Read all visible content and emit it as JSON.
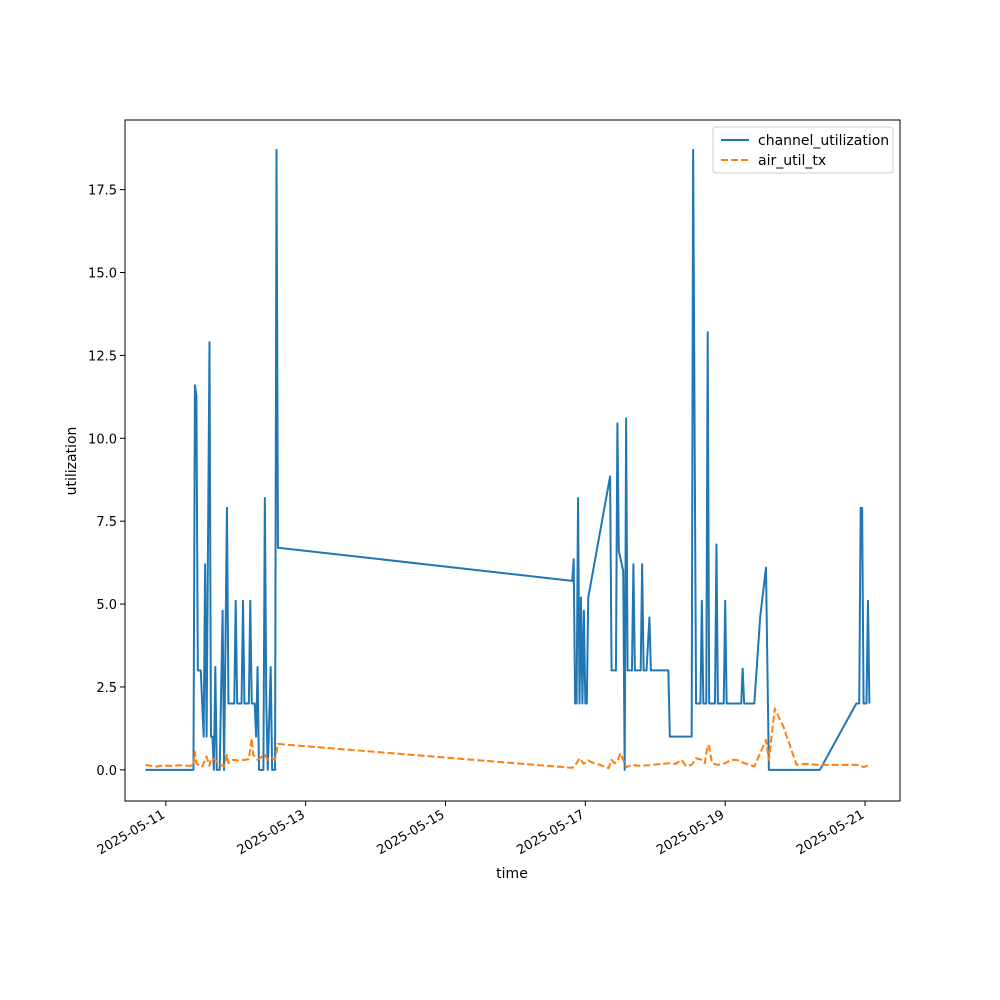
{
  "chart_data": {
    "type": "line",
    "xlabel": "time",
    "ylabel": "utilization",
    "x_axis_type": "date",
    "xlim": [
      "2025-05-10T10:00",
      "2025-05-21T12:00"
    ],
    "ylim": [
      -0.94,
      19.6
    ],
    "x_ticks": [
      {
        "value": "2025-05-11",
        "label": "2025-05-11"
      },
      {
        "value": "2025-05-13",
        "label": "2025-05-13"
      },
      {
        "value": "2025-05-15",
        "label": "2025-05-15"
      },
      {
        "value": "2025-05-17",
        "label": "2025-05-17"
      },
      {
        "value": "2025-05-19",
        "label": "2025-05-19"
      },
      {
        "value": "2025-05-21",
        "label": "2025-05-21"
      }
    ],
    "y_ticks": [
      {
        "value": 0,
        "label": "0.0"
      },
      {
        "value": 2.5,
        "label": "2.5"
      },
      {
        "value": 5,
        "label": "5.0"
      },
      {
        "value": 7.5,
        "label": "7.5"
      },
      {
        "value": 10,
        "label": "10.0"
      },
      {
        "value": 12.5,
        "label": "12.5"
      },
      {
        "value": 15,
        "label": "15.0"
      },
      {
        "value": 17.5,
        "label": "17.5"
      }
    ],
    "legend": {
      "placement": "top-right"
    },
    "grid": false,
    "series": [
      {
        "name": "channel_utilization",
        "color": "#1f77b4",
        "style": "solid",
        "points": [
          [
            "2025-05-10T17:00",
            0
          ],
          [
            "2025-05-11T09:30",
            0
          ],
          [
            "2025-05-11T10:00",
            11.6
          ],
          [
            "2025-05-11T10:30",
            11.3
          ],
          [
            "2025-05-11T11:00",
            3.0
          ],
          [
            "2025-05-11T12:00",
            3.0
          ],
          [
            "2025-05-11T13:00",
            1.0
          ],
          [
            "2025-05-11T13:30",
            6.2
          ],
          [
            "2025-05-11T14:00",
            1.0
          ],
          [
            "2025-05-11T15:00",
            12.9
          ],
          [
            "2025-05-11T15:30",
            1.0
          ],
          [
            "2025-05-11T16:00",
            1.0
          ],
          [
            "2025-05-11T16:30",
            0
          ],
          [
            "2025-05-11T17:00",
            3.1
          ],
          [
            "2025-05-11T17:30",
            0
          ],
          [
            "2025-05-11T18:30",
            0
          ],
          [
            "2025-05-11T19:30",
            4.8
          ],
          [
            "2025-05-11T20:00",
            0
          ],
          [
            "2025-05-11T21:00",
            7.9
          ],
          [
            "2025-05-11T21:30",
            2.0
          ],
          [
            "2025-05-11T23:30",
            2.0
          ],
          [
            "2025-05-12T00:00",
            5.1
          ],
          [
            "2025-05-12T00:30",
            2.0
          ],
          [
            "2025-05-12T02:00",
            2.0
          ],
          [
            "2025-05-12T02:30",
            5.1
          ],
          [
            "2025-05-12T03:00",
            2.0
          ],
          [
            "2025-05-12T04:30",
            2.0
          ],
          [
            "2025-05-12T05:00",
            5.1
          ],
          [
            "2025-05-12T05:30",
            2.0
          ],
          [
            "2025-05-12T06:30",
            2.0
          ],
          [
            "2025-05-12T07:00",
            1.0
          ],
          [
            "2025-05-12T07:30",
            3.1
          ],
          [
            "2025-05-12T08:00",
            0
          ],
          [
            "2025-05-12T09:30",
            0
          ],
          [
            "2025-05-12T10:00",
            8.2
          ],
          [
            "2025-05-12T10:30",
            2.0
          ],
          [
            "2025-05-12T11:00",
            0
          ],
          [
            "2025-05-12T12:00",
            3.1
          ],
          [
            "2025-05-12T12:30",
            0
          ],
          [
            "2025-05-12T13:30",
            0
          ],
          [
            "2025-05-12T14:00",
            18.7
          ],
          [
            "2025-05-12T14:30",
            6.7
          ],
          [
            "2025-05-16T19:30",
            5.7
          ],
          [
            "2025-05-16T20:00",
            6.35
          ],
          [
            "2025-05-16T20:30",
            2.0
          ],
          [
            "2025-05-16T21:00",
            2.0
          ],
          [
            "2025-05-16T21:30",
            8.2
          ],
          [
            "2025-05-16T22:00",
            2.0
          ],
          [
            "2025-05-16T22:30",
            5.2
          ],
          [
            "2025-05-16T23:00",
            2.0
          ],
          [
            "2025-05-16T23:30",
            4.8
          ],
          [
            "2025-05-17T00:00",
            2.0
          ],
          [
            "2025-05-17T00:30",
            2.0
          ],
          [
            "2025-05-17T01:00",
            5.2
          ],
          [
            "2025-05-17T08:30",
            8.85
          ],
          [
            "2025-05-17T09:00",
            3.0
          ],
          [
            "2025-05-17T10:30",
            3.0
          ],
          [
            "2025-05-17T11:00",
            10.45
          ],
          [
            "2025-05-17T11:30",
            6.6
          ],
          [
            "2025-05-17T13:00",
            6.0
          ],
          [
            "2025-05-17T13:30",
            0
          ],
          [
            "2025-05-17T14:00",
            10.6
          ],
          [
            "2025-05-17T14:30",
            3.0
          ],
          [
            "2025-05-17T16:00",
            3.0
          ],
          [
            "2025-05-17T16:30",
            6.2
          ],
          [
            "2025-05-17T17:00",
            3.0
          ],
          [
            "2025-05-17T19:00",
            3.0
          ],
          [
            "2025-05-17T19:30",
            6.2
          ],
          [
            "2025-05-17T20:00",
            3.0
          ],
          [
            "2025-05-17T21:00",
            3.0
          ],
          [
            "2025-05-17T22:00",
            4.6
          ],
          [
            "2025-05-17T22:30",
            3.0
          ],
          [
            "2025-05-18T02:00",
            3.0
          ],
          [
            "2025-05-18T04:30",
            3.0
          ],
          [
            "2025-05-18T05:00",
            1.0
          ],
          [
            "2025-05-18T12:30",
            1.0
          ],
          [
            "2025-05-18T13:00",
            18.7
          ],
          [
            "2025-05-18T14:00",
            2.0
          ],
          [
            "2025-05-18T15:30",
            2.0
          ],
          [
            "2025-05-18T16:00",
            5.1
          ],
          [
            "2025-05-18T16:30",
            2.0
          ],
          [
            "2025-05-18T17:30",
            2.0
          ],
          [
            "2025-05-18T18:00",
            13.2
          ],
          [
            "2025-05-18T18:30",
            2.0
          ],
          [
            "2025-05-18T20:30",
            2.0
          ],
          [
            "2025-05-18T21:00",
            6.8
          ],
          [
            "2025-05-18T21:30",
            2.0
          ],
          [
            "2025-05-18T23:30",
            2.0
          ],
          [
            "2025-05-19T00:00",
            5.1
          ],
          [
            "2025-05-19T00:30",
            2.0
          ],
          [
            "2025-05-19T05:30",
            2.0
          ],
          [
            "2025-05-19T06:00",
            3.05
          ],
          [
            "2025-05-19T06:30",
            2.0
          ],
          [
            "2025-05-19T10:00",
            2.0
          ],
          [
            "2025-05-19T12:00",
            4.6
          ],
          [
            "2025-05-19T14:00",
            6.1
          ],
          [
            "2025-05-19T15:00",
            0
          ],
          [
            "2025-05-20T08:30",
            0
          ],
          [
            "2025-05-20T21:00",
            2.0
          ],
          [
            "2025-05-20T22:00",
            2.0
          ],
          [
            "2025-05-20T22:30",
            7.9
          ],
          [
            "2025-05-20T23:00",
            7.9
          ],
          [
            "2025-05-20T23:30",
            2.0
          ],
          [
            "2025-05-21T00:30",
            2.0
          ],
          [
            "2025-05-21T01:00",
            5.1
          ],
          [
            "2025-05-21T01:30",
            2.0
          ]
        ]
      },
      {
        "name": "air_util_tx",
        "color": "#ff7f0e",
        "style": "dashed",
        "points": [
          [
            "2025-05-10T17:00",
            0.15
          ],
          [
            "2025-05-10T19:00",
            0.12
          ],
          [
            "2025-05-10T21:00",
            0.1
          ],
          [
            "2025-05-10T23:00",
            0.13
          ],
          [
            "2025-05-11T02:00",
            0.12
          ],
          [
            "2025-05-11T05:00",
            0.14
          ],
          [
            "2025-05-11T08:00",
            0.12
          ],
          [
            "2025-05-11T09:30",
            0.14
          ],
          [
            "2025-05-11T10:00",
            0.55
          ],
          [
            "2025-05-11T10:30",
            0.2
          ],
          [
            "2025-05-11T11:30",
            0.12
          ],
          [
            "2025-05-11T12:30",
            0.1
          ],
          [
            "2025-05-11T13:30",
            0.3
          ],
          [
            "2025-05-11T14:00",
            0.4
          ],
          [
            "2025-05-11T15:00",
            0.12
          ],
          [
            "2025-05-11T15:30",
            0.35
          ],
          [
            "2025-05-11T17:00",
            0.3
          ],
          [
            "2025-05-11T18:00",
            0.2
          ],
          [
            "2025-05-11T20:00",
            0.1
          ],
          [
            "2025-05-11T21:00",
            0.45
          ],
          [
            "2025-05-11T21:30",
            0.2
          ],
          [
            "2025-05-11T23:00",
            0.3
          ],
          [
            "2025-05-12T01:00",
            0.28
          ],
          [
            "2025-05-12T03:00",
            0.3
          ],
          [
            "2025-05-12T04:30",
            0.32
          ],
          [
            "2025-05-12T05:30",
            0.95
          ],
          [
            "2025-05-12T06:00",
            0.45
          ],
          [
            "2025-05-12T07:30",
            0.3
          ],
          [
            "2025-05-12T09:00",
            0.4
          ],
          [
            "2025-05-12T10:00",
            0.45
          ],
          [
            "2025-05-12T11:00",
            0.3
          ],
          [
            "2025-05-12T12:30",
            0.35
          ],
          [
            "2025-05-12T13:30",
            0.3
          ],
          [
            "2025-05-12T14:30",
            0.78
          ],
          [
            "2025-05-16T19:30",
            0.06
          ],
          [
            "2025-05-16T21:00",
            0.2
          ],
          [
            "2025-05-16T22:00",
            0.35
          ],
          [
            "2025-05-16T23:30",
            0.18
          ],
          [
            "2025-05-17T01:00",
            0.28
          ],
          [
            "2025-05-17T03:00",
            0.2
          ],
          [
            "2025-05-17T05:00",
            0.15
          ],
          [
            "2025-05-17T08:00",
            0.05
          ],
          [
            "2025-05-17T09:00",
            0.3
          ],
          [
            "2025-05-17T10:00",
            0.2
          ],
          [
            "2025-05-17T11:00",
            0.25
          ],
          [
            "2025-05-17T12:00",
            0.5
          ],
          [
            "2025-05-17T13:00",
            0.3
          ],
          [
            "2025-05-17T14:00",
            0.08
          ],
          [
            "2025-05-17T16:00",
            0.15
          ],
          [
            "2025-05-17T19:00",
            0.12
          ],
          [
            "2025-05-17T22:00",
            0.14
          ],
          [
            "2025-05-18T02:00",
            0.18
          ],
          [
            "2025-05-18T05:00",
            0.2
          ],
          [
            "2025-05-18T07:00",
            0.18
          ],
          [
            "2025-05-18T09:00",
            0.3
          ],
          [
            "2025-05-18T10:30",
            0.12
          ],
          [
            "2025-05-18T12:30",
            0.15
          ],
          [
            "2025-05-18T14:00",
            0.35
          ],
          [
            "2025-05-18T16:00",
            0.3
          ],
          [
            "2025-05-18T17:00",
            0.2
          ],
          [
            "2025-05-18T18:00",
            0.75
          ],
          [
            "2025-05-18T18:30",
            0.7
          ],
          [
            "2025-05-18T19:30",
            0.2
          ],
          [
            "2025-05-18T21:30",
            0.15
          ],
          [
            "2025-05-19T00:00",
            0.2
          ],
          [
            "2025-05-19T02:00",
            0.3
          ],
          [
            "2025-05-19T04:00",
            0.3
          ],
          [
            "2025-05-19T06:00",
            0.22
          ],
          [
            "2025-05-19T10:00",
            0.1
          ],
          [
            "2025-05-19T14:00",
            0.9
          ],
          [
            "2025-05-19T15:00",
            0.3
          ],
          [
            "2025-05-19T17:00",
            1.85
          ],
          [
            "2025-05-19T20:00",
            1.3
          ],
          [
            "2025-05-20T00:30",
            0.15
          ],
          [
            "2025-05-20T03:00",
            0.18
          ],
          [
            "2025-05-20T08:00",
            0.15
          ],
          [
            "2025-05-20T22:00",
            0.15
          ],
          [
            "2025-05-20T23:30",
            0.08
          ],
          [
            "2025-05-21T01:30",
            0.15
          ]
        ]
      }
    ]
  }
}
